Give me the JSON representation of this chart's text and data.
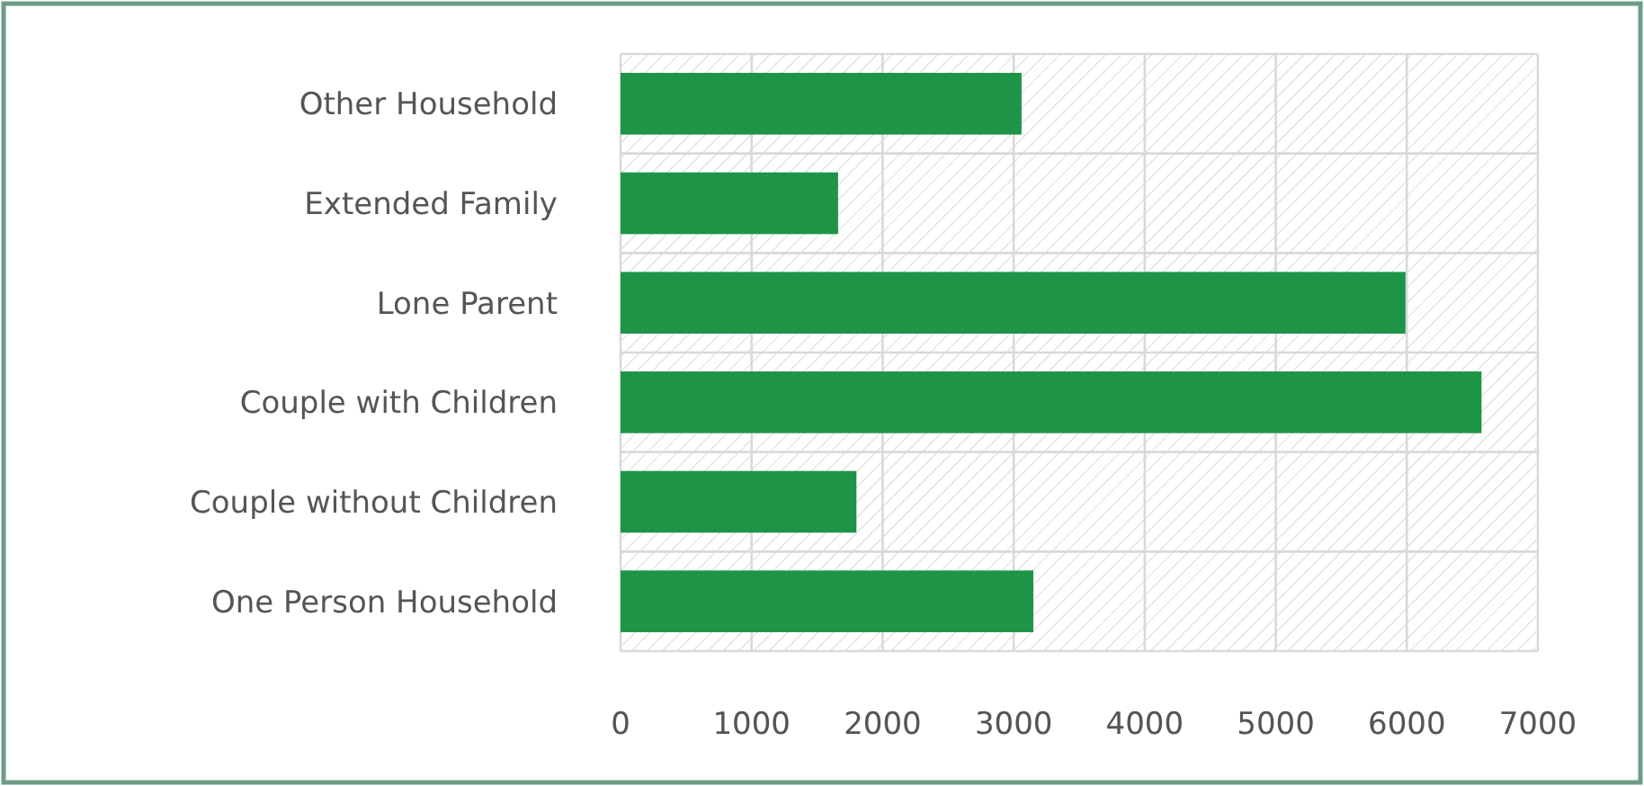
{
  "chart_data": {
    "type": "bar",
    "orientation": "horizontal",
    "categories": [
      "Other Household",
      "Extended Family",
      "Lone Parent",
      "Couple with Children",
      "Couple without Children",
      "One Person Household"
    ],
    "values": [
      3060,
      1660,
      5990,
      6570,
      1800,
      3150
    ],
    "color": "#1e9447",
    "xlim": [
      0,
      7000
    ],
    "xticks": [
      0,
      1000,
      2000,
      3000,
      4000,
      5000,
      6000,
      7000
    ],
    "grid": "x"
  }
}
